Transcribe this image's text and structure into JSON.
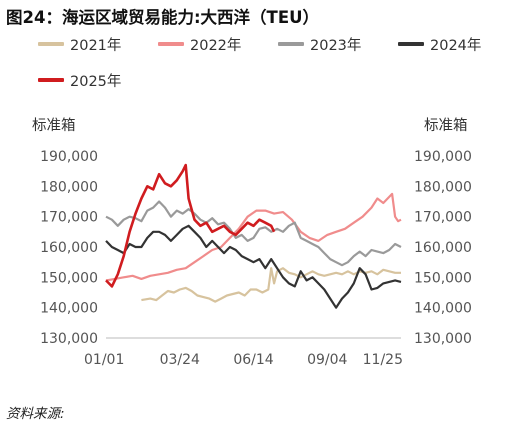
{
  "title": "图24：海运区域贸易能力:大西洋（TEU）",
  "source": "资料来源:",
  "chart_data": {
    "type": "line",
    "ylabel_left": "标准箱",
    "ylabel_right": "标准箱",
    "ylim": [
      130000,
      190000
    ],
    "yticks": [
      "130,000",
      "140,000",
      "150,000",
      "160,000",
      "170,000",
      "180,000",
      "190,000"
    ],
    "xticks": [
      "01/01",
      "03/24",
      "06/14",
      "09/04",
      "11/25"
    ],
    "legend_position": "top",
    "series": [
      {
        "name": "2021年",
        "color": "#d7c39e",
        "points": [
          [
            0.12,
            142500
          ],
          [
            0.15,
            143000
          ],
          [
            0.17,
            142500
          ],
          [
            0.19,
            144000
          ],
          [
            0.21,
            145500
          ],
          [
            0.23,
            145000
          ],
          [
            0.25,
            146000
          ],
          [
            0.27,
            146500
          ],
          [
            0.29,
            145500
          ],
          [
            0.31,
            144000
          ],
          [
            0.33,
            143500
          ],
          [
            0.35,
            143000
          ],
          [
            0.37,
            142000
          ],
          [
            0.39,
            143000
          ],
          [
            0.41,
            144000
          ],
          [
            0.43,
            144500
          ],
          [
            0.45,
            145000
          ],
          [
            0.47,
            144000
          ],
          [
            0.49,
            146000
          ],
          [
            0.51,
            146000
          ],
          [
            0.53,
            145000
          ],
          [
            0.55,
            146000
          ],
          [
            0.56,
            153000
          ],
          [
            0.57,
            148000
          ],
          [
            0.58,
            152000
          ],
          [
            0.6,
            153000
          ],
          [
            0.62,
            151500
          ],
          [
            0.64,
            151000
          ],
          [
            0.66,
            150000
          ],
          [
            0.68,
            151000
          ],
          [
            0.7,
            152000
          ],
          [
            0.72,
            151000
          ],
          [
            0.74,
            150500
          ],
          [
            0.76,
            151000
          ],
          [
            0.78,
            151500
          ],
          [
            0.8,
            151000
          ],
          [
            0.82,
            152000
          ],
          [
            0.84,
            151000
          ],
          [
            0.86,
            152000
          ],
          [
            0.88,
            151500
          ],
          [
            0.9,
            152000
          ],
          [
            0.92,
            151000
          ],
          [
            0.94,
            152500
          ],
          [
            0.96,
            152000
          ],
          [
            0.98,
            151500
          ],
          [
            1.0,
            151500
          ]
        ]
      },
      {
        "name": "2022年",
        "color": "#f08c8c",
        "points": [
          [
            0.0,
            149000
          ],
          [
            0.03,
            149500
          ],
          [
            0.06,
            150000
          ],
          [
            0.09,
            150500
          ],
          [
            0.12,
            149500
          ],
          [
            0.15,
            150500
          ],
          [
            0.18,
            151000
          ],
          [
            0.21,
            151500
          ],
          [
            0.24,
            152500
          ],
          [
            0.27,
            153000
          ],
          [
            0.3,
            155000
          ],
          [
            0.33,
            157000
          ],
          [
            0.36,
            159000
          ],
          [
            0.39,
            160000
          ],
          [
            0.42,
            163000
          ],
          [
            0.45,
            166000
          ],
          [
            0.48,
            170000
          ],
          [
            0.51,
            172000
          ],
          [
            0.54,
            172000
          ],
          [
            0.57,
            171000
          ],
          [
            0.6,
            171500
          ],
          [
            0.63,
            169000
          ],
          [
            0.66,
            165000
          ],
          [
            0.69,
            163000
          ],
          [
            0.72,
            162000
          ],
          [
            0.75,
            164000
          ],
          [
            0.78,
            165000
          ],
          [
            0.81,
            166000
          ],
          [
            0.84,
            168000
          ],
          [
            0.87,
            170000
          ],
          [
            0.9,
            173000
          ],
          [
            0.92,
            176000
          ],
          [
            0.94,
            174500
          ],
          [
            0.96,
            176500
          ],
          [
            0.97,
            177500
          ],
          [
            0.98,
            170000
          ],
          [
            0.99,
            168500
          ],
          [
            1.0,
            169000
          ]
        ]
      },
      {
        "name": "2023年",
        "color": "#9a9a9a",
        "points": [
          [
            0.0,
            170000
          ],
          [
            0.02,
            169000
          ],
          [
            0.04,
            167000
          ],
          [
            0.06,
            169000
          ],
          [
            0.08,
            170000
          ],
          [
            0.1,
            169500
          ],
          [
            0.12,
            168500
          ],
          [
            0.14,
            172000
          ],
          [
            0.16,
            173000
          ],
          [
            0.18,
            175000
          ],
          [
            0.2,
            173000
          ],
          [
            0.22,
            170000
          ],
          [
            0.24,
            172000
          ],
          [
            0.26,
            171000
          ],
          [
            0.28,
            172500
          ],
          [
            0.3,
            171000
          ],
          [
            0.32,
            169000
          ],
          [
            0.34,
            168000
          ],
          [
            0.36,
            169500
          ],
          [
            0.38,
            167500
          ],
          [
            0.4,
            168000
          ],
          [
            0.42,
            166000
          ],
          [
            0.44,
            163000
          ],
          [
            0.46,
            164000
          ],
          [
            0.48,
            162000
          ],
          [
            0.5,
            163000
          ],
          [
            0.52,
            166000
          ],
          [
            0.54,
            166500
          ],
          [
            0.56,
            165000
          ],
          [
            0.58,
            166000
          ],
          [
            0.6,
            165000
          ],
          [
            0.62,
            167000
          ],
          [
            0.64,
            168000
          ],
          [
            0.66,
            163000
          ],
          [
            0.68,
            162000
          ],
          [
            0.7,
            161000
          ],
          [
            0.72,
            160000
          ],
          [
            0.74,
            158000
          ],
          [
            0.76,
            156000
          ],
          [
            0.78,
            155000
          ],
          [
            0.8,
            154000
          ],
          [
            0.82,
            155000
          ],
          [
            0.84,
            157000
          ],
          [
            0.86,
            158500
          ],
          [
            0.88,
            157000
          ],
          [
            0.9,
            159000
          ],
          [
            0.92,
            158500
          ],
          [
            0.94,
            158000
          ],
          [
            0.96,
            159000
          ],
          [
            0.98,
            161000
          ],
          [
            1.0,
            160000
          ]
        ]
      },
      {
        "name": "2024年",
        "color": "#333333",
        "points": [
          [
            0.0,
            162000
          ],
          [
            0.02,
            160000
          ],
          [
            0.04,
            159000
          ],
          [
            0.06,
            158000
          ],
          [
            0.08,
            161000
          ],
          [
            0.1,
            160000
          ],
          [
            0.12,
            160000
          ],
          [
            0.14,
            163000
          ],
          [
            0.16,
            165000
          ],
          [
            0.18,
            165000
          ],
          [
            0.2,
            164000
          ],
          [
            0.22,
            162000
          ],
          [
            0.24,
            164000
          ],
          [
            0.26,
            166000
          ],
          [
            0.28,
            167000
          ],
          [
            0.3,
            165000
          ],
          [
            0.32,
            163000
          ],
          [
            0.34,
            160000
          ],
          [
            0.36,
            162000
          ],
          [
            0.38,
            160000
          ],
          [
            0.4,
            158000
          ],
          [
            0.42,
            160000
          ],
          [
            0.44,
            159000
          ],
          [
            0.46,
            157000
          ],
          [
            0.48,
            156000
          ],
          [
            0.5,
            155000
          ],
          [
            0.52,
            156000
          ],
          [
            0.54,
            153000
          ],
          [
            0.56,
            156000
          ],
          [
            0.58,
            153000
          ],
          [
            0.6,
            150000
          ],
          [
            0.62,
            148000
          ],
          [
            0.64,
            147000
          ],
          [
            0.66,
            152000
          ],
          [
            0.68,
            149000
          ],
          [
            0.7,
            150000
          ],
          [
            0.72,
            148000
          ],
          [
            0.74,
            146000
          ],
          [
            0.76,
            143000
          ],
          [
            0.78,
            140000
          ],
          [
            0.8,
            143000
          ],
          [
            0.82,
            145000
          ],
          [
            0.84,
            148000
          ],
          [
            0.86,
            153000
          ],
          [
            0.88,
            151000
          ],
          [
            0.9,
            146000
          ],
          [
            0.92,
            146500
          ],
          [
            0.94,
            148000
          ],
          [
            0.96,
            148500
          ],
          [
            0.98,
            149000
          ],
          [
            1.0,
            148500
          ]
        ]
      },
      {
        "name": "2025年",
        "color": "#d01c1f",
        "points": [
          [
            0.0,
            149000
          ],
          [
            0.02,
            147000
          ],
          [
            0.04,
            151000
          ],
          [
            0.06,
            157000
          ],
          [
            0.08,
            165000
          ],
          [
            0.1,
            171000
          ],
          [
            0.12,
            176000
          ],
          [
            0.14,
            180000
          ],
          [
            0.16,
            179000
          ],
          [
            0.18,
            184000
          ],
          [
            0.2,
            181000
          ],
          [
            0.22,
            180000
          ],
          [
            0.24,
            182000
          ],
          [
            0.26,
            185000
          ],
          [
            0.27,
            187000
          ],
          [
            0.28,
            176000
          ],
          [
            0.3,
            169000
          ],
          [
            0.32,
            167000
          ],
          [
            0.34,
            168000
          ],
          [
            0.36,
            165000
          ],
          [
            0.38,
            166000
          ],
          [
            0.4,
            167000
          ],
          [
            0.42,
            165000
          ],
          [
            0.44,
            164000
          ],
          [
            0.46,
            166000
          ],
          [
            0.48,
            168000
          ],
          [
            0.5,
            167000
          ],
          [
            0.52,
            169000
          ],
          [
            0.54,
            168000
          ],
          [
            0.56,
            167000
          ],
          [
            0.57,
            165000
          ]
        ]
      }
    ]
  }
}
